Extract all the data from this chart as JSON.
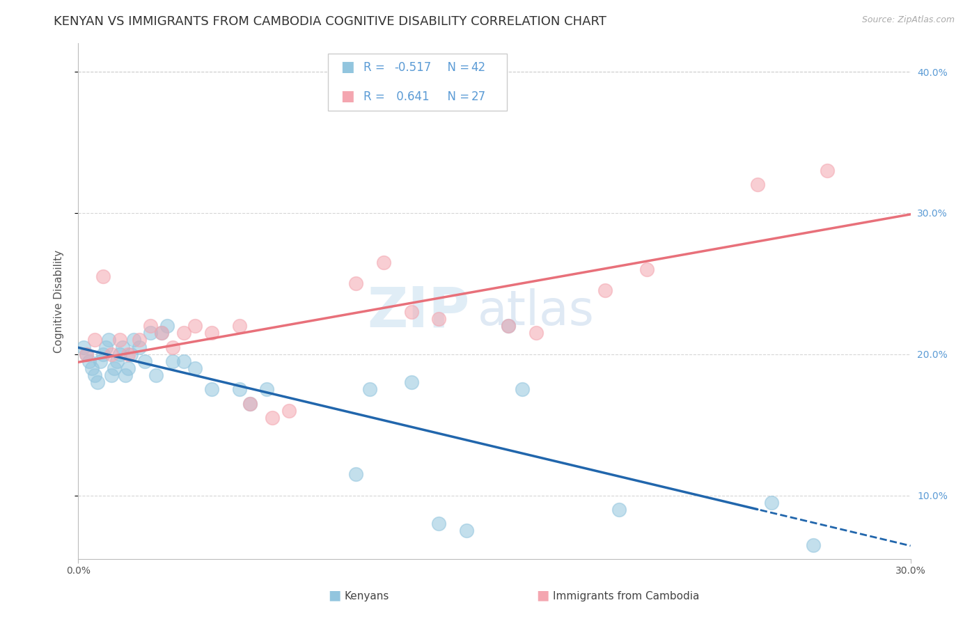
{
  "title": "KENYAN VS IMMIGRANTS FROM CAMBODIA COGNITIVE DISABILITY CORRELATION CHART",
  "source": "Source: ZipAtlas.com",
  "ylabel": "Cognitive Disability",
  "xlim": [
    0.0,
    0.3
  ],
  "ylim": [
    0.055,
    0.42
  ],
  "yticks": [
    0.1,
    0.2,
    0.3,
    0.4
  ],
  "ytick_labels": [
    "10.0%",
    "20.0%",
    "30.0%",
    "40.0%"
  ],
  "r_kenyan": -0.517,
  "n_kenyan": 42,
  "r_cambodia": 0.641,
  "n_cambodia": 27,
  "kenyan_color": "#92c5de",
  "cambodia_color": "#f4a6b0",
  "kenyan_line_color": "#2166ac",
  "cambodia_line_color": "#e8707a",
  "kenyan_x": [
    0.002,
    0.003,
    0.004,
    0.005,
    0.006,
    0.007,
    0.008,
    0.009,
    0.01,
    0.011,
    0.012,
    0.013,
    0.014,
    0.015,
    0.016,
    0.017,
    0.018,
    0.019,
    0.02,
    0.022,
    0.024,
    0.026,
    0.028,
    0.03,
    0.032,
    0.034,
    0.038,
    0.042,
    0.048,
    0.058,
    0.062,
    0.068,
    0.1,
    0.105,
    0.12,
    0.13,
    0.14,
    0.155,
    0.16,
    0.195,
    0.25,
    0.265
  ],
  "kenyan_y": [
    0.205,
    0.2,
    0.195,
    0.19,
    0.185,
    0.18,
    0.195,
    0.2,
    0.205,
    0.21,
    0.185,
    0.19,
    0.195,
    0.2,
    0.205,
    0.185,
    0.19,
    0.2,
    0.21,
    0.205,
    0.195,
    0.215,
    0.185,
    0.215,
    0.22,
    0.195,
    0.195,
    0.19,
    0.175,
    0.175,
    0.165,
    0.175,
    0.115,
    0.175,
    0.18,
    0.08,
    0.075,
    0.22,
    0.175,
    0.09,
    0.095,
    0.065
  ],
  "cambodia_x": [
    0.003,
    0.006,
    0.009,
    0.012,
    0.015,
    0.018,
    0.022,
    0.026,
    0.03,
    0.034,
    0.038,
    0.042,
    0.048,
    0.058,
    0.062,
    0.07,
    0.076,
    0.1,
    0.11,
    0.12,
    0.13,
    0.155,
    0.165,
    0.19,
    0.205,
    0.245,
    0.27
  ],
  "cambodia_y": [
    0.2,
    0.21,
    0.255,
    0.2,
    0.21,
    0.2,
    0.21,
    0.22,
    0.215,
    0.205,
    0.215,
    0.22,
    0.215,
    0.22,
    0.165,
    0.155,
    0.16,
    0.25,
    0.265,
    0.23,
    0.225,
    0.22,
    0.215,
    0.245,
    0.26,
    0.32,
    0.33
  ],
  "background_color": "#ffffff",
  "grid_color": "#cccccc",
  "watermark_zip": "ZIP",
  "watermark_atlas": "atlas",
  "title_fontsize": 13,
  "label_fontsize": 11,
  "tick_fontsize": 10,
  "legend_fontsize": 13
}
